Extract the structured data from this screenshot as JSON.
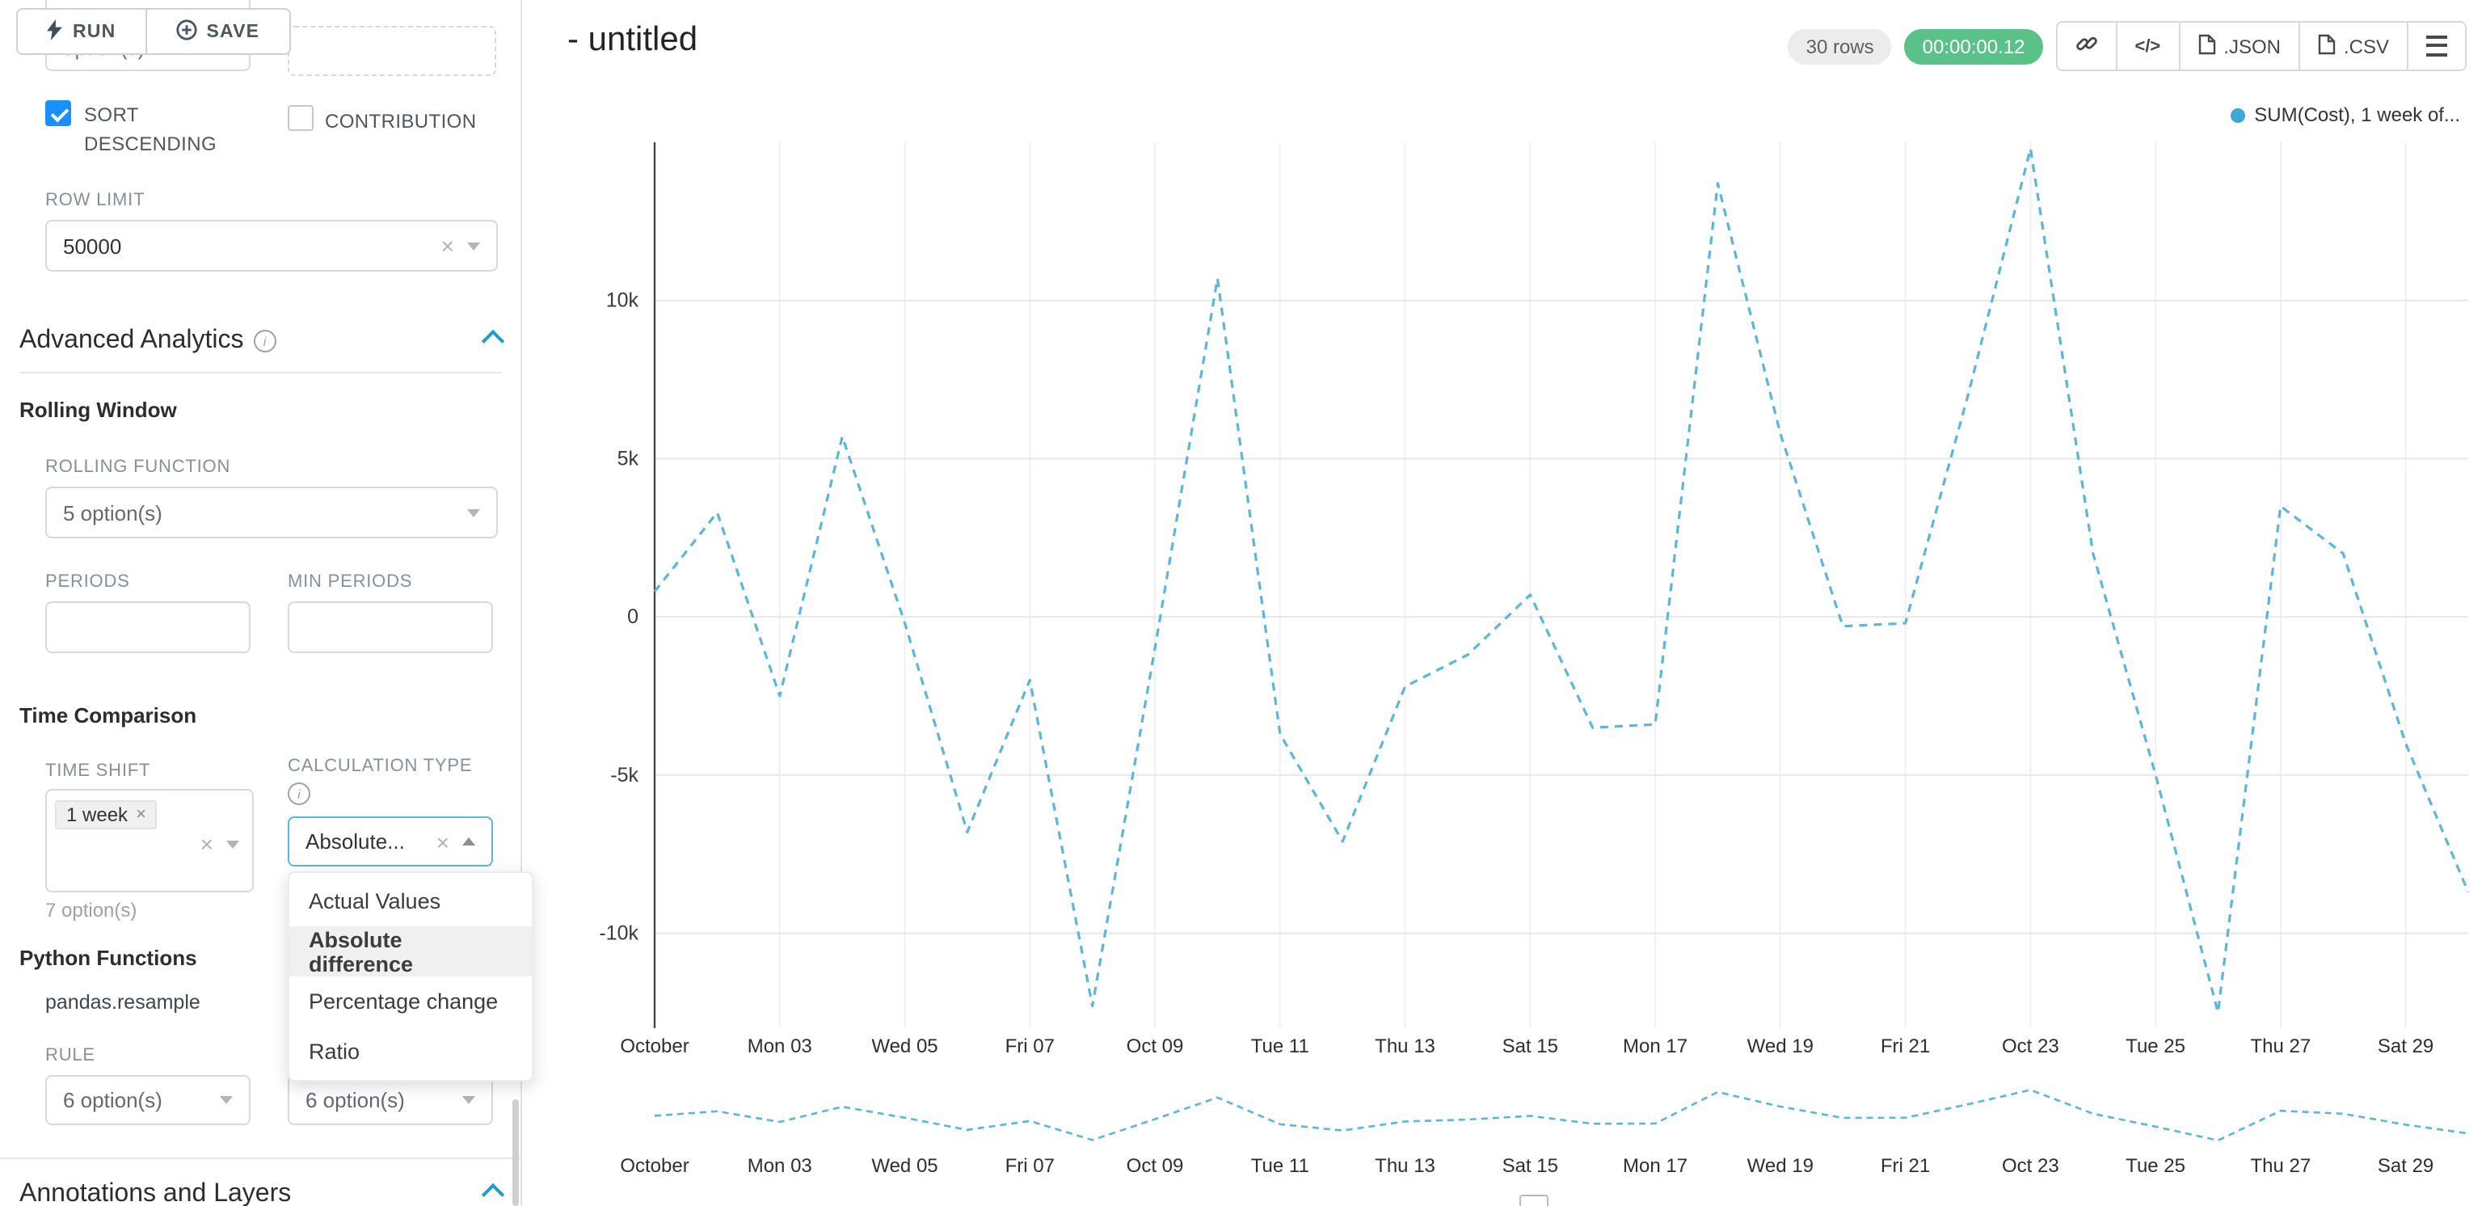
{
  "toolbar": {
    "run_label": "RUN",
    "save_label": "SAVE"
  },
  "panel": {
    "cropped_select_text": "option(s)",
    "sort_descending_label": "SORT DESCENDING",
    "contribution_label": "CONTRIBUTION",
    "row_limit_label": "ROW LIMIT",
    "row_limit_value": "50000",
    "advanced_analytics_title": "Advanced Analytics",
    "rolling_window_title": "Rolling Window",
    "rolling_function_label": "ROLLING FUNCTION",
    "rolling_function_value": "5 option(s)",
    "periods_label": "PERIODS",
    "min_periods_label": "MIN PERIODS",
    "time_comparison_title": "Time Comparison",
    "time_shift_label": "TIME SHIFT",
    "time_shift_tag": "1 week",
    "time_shift_helper": "7 option(s)",
    "calculation_type_label": "CALCULATION TYPE",
    "calculation_type_value": "Absolute...",
    "calculation_options": [
      "Actual Values",
      "Absolute difference",
      "Percentage change",
      "Ratio"
    ],
    "selected_calculation": "Absolute difference",
    "python_functions_title": "Python Functions",
    "python_function_name": "pandas.resample",
    "rule_label": "RULE",
    "rule_value_1": "6 option(s)",
    "rule_value_2": "6 option(s)",
    "annotations_title": "Annotations and Layers"
  },
  "header": {
    "title": "- untitled",
    "rows_badge": "30 rows",
    "timer_badge": "00:00:00.12",
    "json_label": ".JSON",
    "csv_label": ".CSV"
  },
  "legend_label": "SUM(Cost), 1 week of...",
  "chart_data": {
    "type": "line",
    "title": "",
    "x": [
      "Oct 01",
      "Oct 02",
      "Oct 03",
      "Oct 04",
      "Oct 05",
      "Oct 06",
      "Oct 07",
      "Oct 08",
      "Oct 09",
      "Oct 10",
      "Oct 11",
      "Oct 12",
      "Oct 13",
      "Oct 14",
      "Oct 15",
      "Oct 16",
      "Oct 17",
      "Oct 18",
      "Oct 19",
      "Oct 20",
      "Oct 21",
      "Oct 22",
      "Oct 23",
      "Oct 24",
      "Oct 25",
      "Oct 26",
      "Oct 27",
      "Oct 28",
      "Oct 29",
      "Oct 30"
    ],
    "series": [
      {
        "name": "SUM(Cost), 1 week offset",
        "color": "#5bb6dc",
        "style": "dashed",
        "values": [
          800,
          3300,
          -2500,
          5700,
          -200,
          -6800,
          -2000,
          -12300,
          -1000,
          10700,
          -3700,
          -7100,
          -2200,
          -1200,
          700,
          -3500,
          -3400,
          13700,
          5800,
          -300,
          -200,
          7000,
          14800,
          2000,
          -5000,
          -12500,
          3500,
          2000,
          -4000,
          -8700
        ]
      }
    ],
    "x_tick_labels": [
      "October",
      "Mon 03",
      "Wed 05",
      "Fri 07",
      "Oct 09",
      "Tue 11",
      "Thu 13",
      "Sat 15",
      "Mon 17",
      "Wed 19",
      "Fri 21",
      "Oct 23",
      "Tue 25",
      "Thu 27",
      "Sat 29"
    ],
    "y_ticks": [
      10000,
      5000,
      0,
      -5000,
      -10000
    ],
    "y_tick_labels": [
      "10k",
      "5k",
      "0",
      "-5k",
      "-10k"
    ],
    "ylim": [
      -13000,
      15000
    ],
    "grid": true,
    "legend_position": "top-right",
    "has_range_selector_mini_chart": true
  }
}
